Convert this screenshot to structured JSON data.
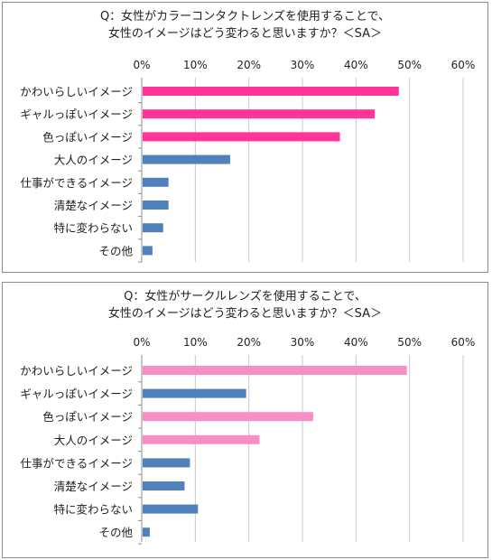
{
  "chart_data": [
    {
      "type": "bar",
      "orientation": "horizontal",
      "title_line1": "Q：女性がカラーコンタクトレンズを使用することで、",
      "title_line2": "女性のイメージはどう変わると思いますか？＜SA＞",
      "categories": [
        "かわいらしいイメージ",
        "ギャルっぽいイメージ",
        "色っぽいイメージ",
        "大人のイメージ",
        "仕事ができるイメージ",
        "清楚なイメージ",
        "特に変わらない",
        "その他"
      ],
      "values": [
        48,
        43.5,
        37,
        16.5,
        5,
        5,
        4,
        2
      ],
      "colors": [
        "#ff3399",
        "#ff3399",
        "#ff3399",
        "#4f81bd",
        "#4f81bd",
        "#4f81bd",
        "#4f81bd",
        "#4f81bd"
      ],
      "xlim": [
        0,
        60
      ],
      "ticks": [
        "0%",
        "10%",
        "20%",
        "30%",
        "40%",
        "50%",
        "60%"
      ],
      "tick_values": [
        0,
        10,
        20,
        30,
        40,
        50,
        60
      ],
      "grid": true
    },
    {
      "type": "bar",
      "orientation": "horizontal",
      "title_line1": "Q：女性がサークルレンズを使用することで、",
      "title_line2": "女性のイメージはどう変わると思いますか？＜SA＞",
      "categories": [
        "かわいらしいイメージ",
        "ギャルっぽいイメージ",
        "色っぽいイメージ",
        "大人のイメージ",
        "仕事ができるイメージ",
        "清楚なイメージ",
        "特に変わらない",
        "その他"
      ],
      "values": [
        49.5,
        19.5,
        32,
        22,
        9,
        8,
        10.5,
        1.5
      ],
      "colors": [
        "#f78fc6",
        "#4f81bd",
        "#f78fc6",
        "#f78fc6",
        "#4f81bd",
        "#4f81bd",
        "#4f81bd",
        "#4f81bd"
      ],
      "xlim": [
        0,
        60
      ],
      "ticks": [
        "0%",
        "10%",
        "20%",
        "30%",
        "40%",
        "50%",
        "60%"
      ],
      "tick_values": [
        0,
        10,
        20,
        30,
        40,
        50,
        60
      ],
      "grid": true
    }
  ]
}
